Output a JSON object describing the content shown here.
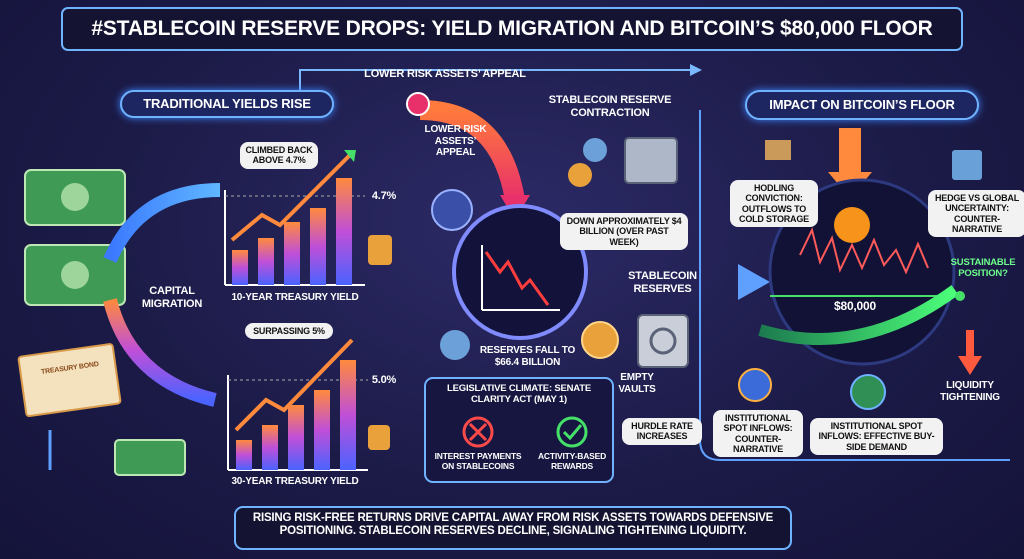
{
  "header": {
    "title": "#STABLECOIN RESERVE DROPS: YIELD MIGRATION AND BITCOIN’S $80,000 FLOOR"
  },
  "flow": {
    "top_arrow_label": "LOWER RISK ASSETS’ APPEAL"
  },
  "yields": {
    "title": "TRADITIONAL YIELDS RISE",
    "capital_migration": "CAPITAL MIGRATION",
    "bond_label": "TREASURY BOND",
    "chart_10y": {
      "note": "CLIMBED BACK ABOVE 4.7%",
      "value": "4.7%",
      "label": "10-YEAR TREASURY YIELD"
    },
    "chart_30y": {
      "note": "SURPASSING 5%",
      "value": "5.0%",
      "label": "30-YEAR TREASURY YIELD"
    }
  },
  "stablecoin": {
    "title": "STABLECOIN RESERVE CONTRACTION",
    "appeal": "LOWER RISK ASSETS’ APPEAL",
    "drop_note": "DOWN APPROXIMATELY $4 BILLION (OVER PAST WEEK)",
    "reserves_arrow": "STABLECOIN RESERVES",
    "reserves_fall": "RESERVES FALL TO $66.4 BILLION",
    "empty_vaults": "EMPTY VAULTS",
    "legislative": {
      "title": "LEGISLATIVE CLIMATE: SENATE CLARITY ACT (MAY 1)",
      "items": [
        "INTEREST PAYMENTS ON STABLECOINS",
        "ACTIVITY-BASED REWARDS"
      ]
    },
    "hurdle": "HURDLE RATE INCREASES"
  },
  "bitcoin": {
    "title": "IMPACT ON BITCOIN’S FLOOR",
    "hodling": "HODLING CONVICTION: OUTFLOWS TO COLD STORAGE",
    "hedge": "HEDGE VS GLOBAL UNCERTAINTY: COUNTER-NARRATIVE",
    "sustainable": "SUSTAINABLE POSITION?",
    "floor": "$80,000",
    "liquidity": "LIQUIDITY TIGHTENING",
    "inflows_counter": "INSTITUTIONAL SPOT INFLOWS: COUNTER-NARRATIVE",
    "inflows_demand": "INSTITUTIONAL SPOT INFLOWS: EFFECTIVE BUY-SIDE DEMAND"
  },
  "footer": {
    "text": "RISING RISK-FREE RETURNS DRIVE CAPITAL AWAY FROM RISK ASSETS TOWARDS DEFENSIVE POSITIONING. STABLECOIN RESERVES DECLINE, SIGNALING TIGHTENING LIQUIDITY."
  }
}
